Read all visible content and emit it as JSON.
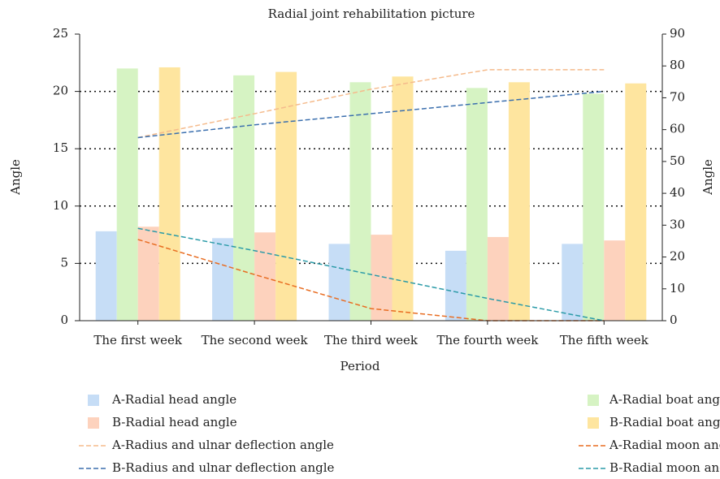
{
  "chart_data": {
    "type": "bar",
    "title": "Radial joint rehabilitation picture",
    "x_label": "Period",
    "y_label": "Angle",
    "y2_label": "Angle",
    "categories": [
      "The first week",
      "The second week",
      "The third week",
      "The fourth week",
      "The fifth week"
    ],
    "ylim": [
      0,
      25
    ],
    "yticks": [
      0,
      5,
      10,
      15,
      20,
      25
    ],
    "y2lim": [
      0,
      90
    ],
    "y2ticks": [
      0,
      10,
      20,
      30,
      40,
      50,
      60,
      70,
      80,
      90
    ],
    "grid": true,
    "series": [
      {
        "name": "A-Radial head angle",
        "type": "bar",
        "color": "#c6ddf6",
        "values": [
          7.8,
          7.2,
          6.7,
          6.1,
          6.7
        ]
      },
      {
        "name": "A-Radial boat angle",
        "type": "bar",
        "color": "#d6f3c3",
        "values": [
          22.0,
          21.4,
          20.8,
          20.3,
          19.8
        ]
      },
      {
        "name": "B-Radial head angle",
        "type": "bar",
        "color": "#fdd2bd",
        "values": [
          8.2,
          7.7,
          7.5,
          7.3,
          7.0
        ]
      },
      {
        "name": "B-Radial boat angle",
        "type": "bar",
        "color": "#fee59f",
        "values": [
          22.1,
          21.7,
          21.3,
          20.8,
          20.7
        ]
      },
      {
        "name": "A-Radius and ulnar deflection angle",
        "type": "line",
        "axis": "y2",
        "line_style": "dashed",
        "color": "#f5bb8c",
        "values": [
          57.5,
          65,
          72.7,
          78.8,
          78.8
        ]
      },
      {
        "name": "A-Radial moon angle",
        "type": "line",
        "axis": "y2",
        "line_style": "dashed",
        "color": "#e86d22",
        "values": [
          25.5,
          14.5,
          3.8,
          0,
          0
        ]
      },
      {
        "name": "B-Radius and ulnar deflection angle",
        "type": "line",
        "axis": "y2",
        "line_style": "dashed",
        "color": "#3b6fae",
        "values": [
          57.5,
          61.5,
          65,
          68.5,
          72
        ]
      },
      {
        "name": "B-Radial moon angle",
        "type": "line",
        "axis": "y2",
        "line_style": "dashed",
        "color": "#2b9ba8",
        "values": [
          29,
          22,
          14.5,
          7,
          0
        ]
      }
    ]
  }
}
